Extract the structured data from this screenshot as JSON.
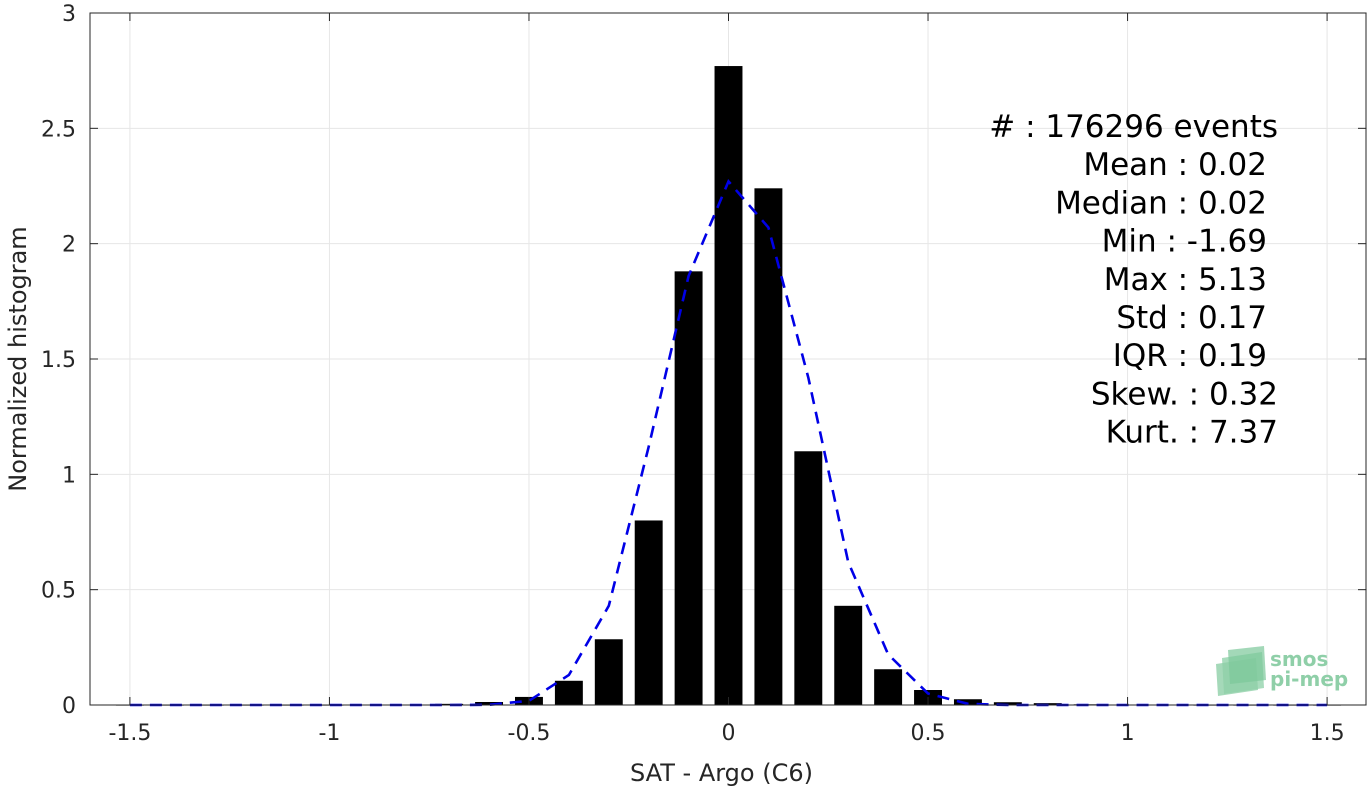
{
  "chart_data": {
    "type": "bar",
    "xlabel": "SAT - Argo (C6)",
    "ylabel": "Normalized histogram",
    "xlim": [
      -1.6,
      1.6
    ],
    "ylim": [
      0,
      3
    ],
    "xticks": [
      -1.5,
      -1,
      -0.5,
      0,
      0.5,
      1,
      1.5
    ],
    "xtick_labels": [
      "-1.5",
      "-1",
      "-0.5",
      "0",
      "0.5",
      "1",
      "1.5"
    ],
    "yticks": [
      0,
      0.5,
      1,
      1.5,
      2,
      2.5,
      3
    ],
    "ytick_labels": [
      "0",
      "0.5",
      "1",
      "1.5",
      "2",
      "2.5",
      "3"
    ],
    "grid": true,
    "bar_width": 0.07,
    "bar_color": "#000000",
    "bars": {
      "x": [
        -1.5,
        -1.4,
        -1.3,
        -1.2,
        -1.1,
        -1.0,
        -0.9,
        -0.8,
        -0.7,
        -0.6,
        -0.5,
        -0.4,
        -0.3,
        -0.2,
        -0.1,
        0.0,
        0.1,
        0.2,
        0.3,
        0.4,
        0.5,
        0.6,
        0.7,
        0.8,
        0.9,
        1.0,
        1.1,
        1.2,
        1.3,
        1.4,
        1.5
      ],
      "values": [
        0,
        0,
        0,
        0,
        0,
        0,
        0.001,
        0.002,
        0.005,
        0.013,
        0.035,
        0.105,
        0.285,
        0.8,
        1.88,
        2.77,
        2.24,
        1.1,
        0.43,
        0.155,
        0.065,
        0.025,
        0.012,
        0.008,
        0.003,
        0.002,
        0.001,
        0,
        0,
        0,
        0
      ]
    },
    "fit_curve": {
      "style": "dashed",
      "color": "#0000e6",
      "x": [
        -1.5,
        -1.4,
        -1.3,
        -1.2,
        -1.1,
        -1.0,
        -0.9,
        -0.8,
        -0.7,
        -0.6,
        -0.5,
        -0.4,
        -0.3,
        -0.2,
        -0.1,
        0.0,
        0.1,
        0.2,
        0.3,
        0.4,
        0.5,
        0.6,
        0.7,
        0.8,
        0.9,
        1.0,
        1.1,
        1.2,
        1.3,
        1.4,
        1.5
      ],
      "y": [
        0,
        0,
        0,
        0,
        0,
        0,
        0,
        0,
        0,
        0.001,
        0.018,
        0.13,
        0.43,
        1.12,
        1.86,
        2.27,
        2.07,
        1.42,
        0.62,
        0.22,
        0.05,
        0.005,
        0,
        0,
        0,
        0,
        0,
        0,
        0,
        0,
        0
      ]
    },
    "stats": [
      {
        "label": "#  : 176296 events"
      },
      {
        "label": "Mean : 0.02"
      },
      {
        "label": "Median : 0.02"
      },
      {
        "label": "Min : -1.69"
      },
      {
        "label": "Max : 5.13"
      },
      {
        "label": "Std : 0.17"
      },
      {
        "label": "IQR : 0.19"
      },
      {
        "label": "Skew. : 0.32"
      },
      {
        "label": "Kurt. : 7.37"
      }
    ]
  },
  "logo": {
    "line1": "smos",
    "line2": "pi-mep",
    "color": "#8fcfa8"
  }
}
